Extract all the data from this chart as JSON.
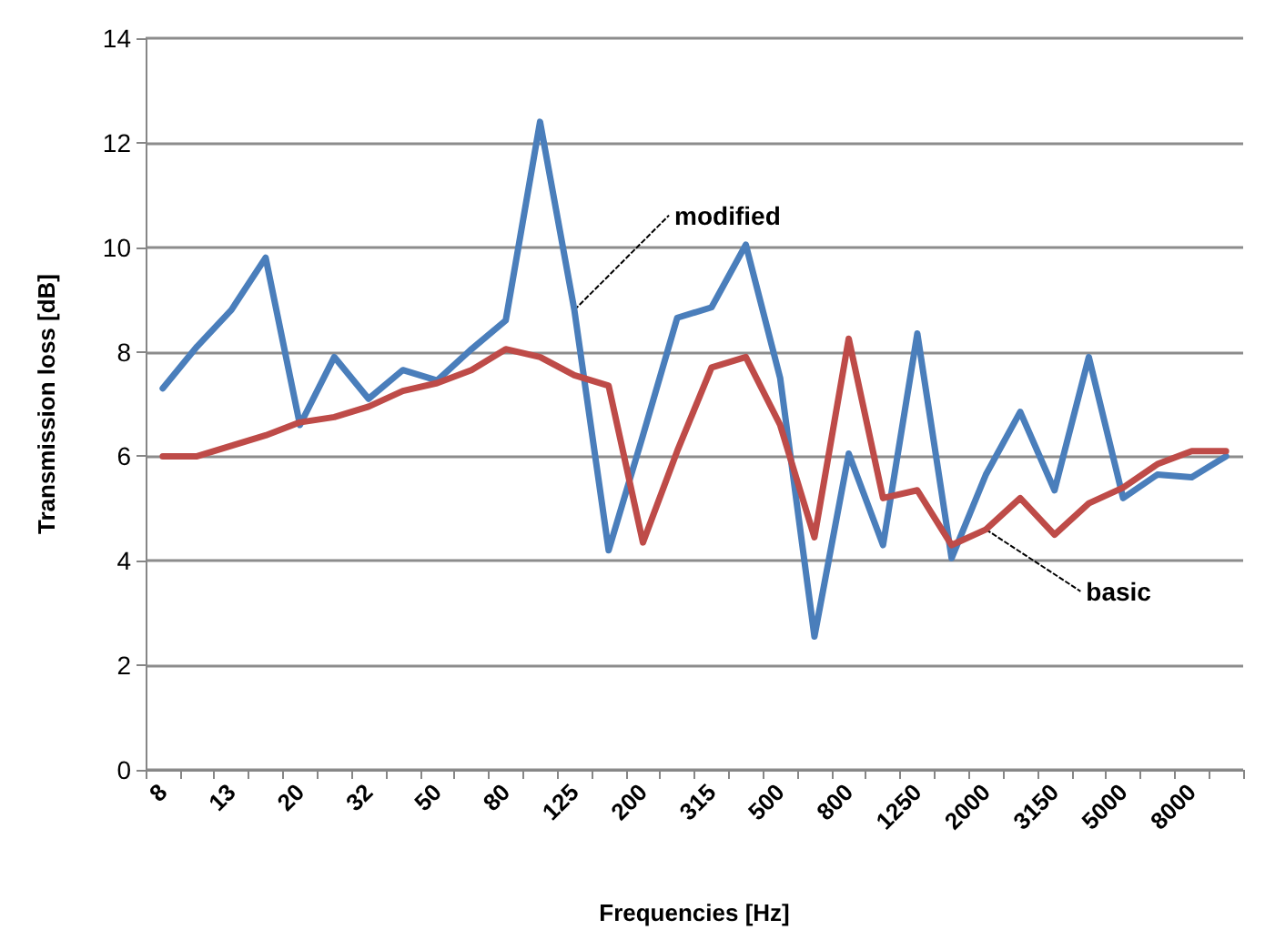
{
  "chart_data": {
    "type": "line",
    "xlabel": "Frequencies [Hz]",
    "ylabel": "Transmission loss [dB]",
    "categories": [
      "8",
      null,
      "13",
      null,
      "20",
      null,
      "32",
      null,
      "50",
      null,
      "80",
      null,
      "125",
      null,
      "200",
      null,
      "315",
      null,
      "500",
      null,
      "800",
      null,
      "1250",
      null,
      "2000",
      null,
      "3150",
      null,
      "5000",
      null,
      "8000",
      null
    ],
    "series": [
      {
        "color": "#4a7ebb",
        "values": [
          7.3,
          8.1,
          8.8,
          9.8,
          6.6,
          7.9,
          7.1,
          7.65,
          7.45,
          8.05,
          8.6,
          12.4,
          8.8,
          4.2,
          6.4,
          8.65,
          8.85,
          10.05,
          7.5,
          2.55,
          6.05,
          4.3,
          8.35,
          4.05,
          5.65,
          6.85,
          5.35,
          7.9,
          5.2,
          5.65,
          5.6,
          6.0
        ]
      },
      {
        "color": "#be4b48",
        "values": [
          6.0,
          6.0,
          6.2,
          6.4,
          6.65,
          6.75,
          6.95,
          7.25,
          7.4,
          7.65,
          8.05,
          7.9,
          7.55,
          7.35,
          4.35,
          6.1,
          7.7,
          7.9,
          6.6,
          4.45,
          8.25,
          5.2,
          5.35,
          4.3,
          4.6,
          5.2,
          4.5,
          5.1,
          5.4,
          5.85,
          6.1,
          6.1
        ]
      }
    ],
    "ylim": [
      0,
      14
    ],
    "yticks": [
      0,
      2,
      4,
      6,
      8,
      10,
      12,
      14
    ],
    "grid": "y",
    "marker": "none",
    "line_style": "solid",
    "annotations": [
      {
        "text": "modified",
        "x": "125",
        "y": 8.8
      },
      {
        "text": "basic",
        "x": "2000",
        "y": 4.6
      }
    ]
  }
}
